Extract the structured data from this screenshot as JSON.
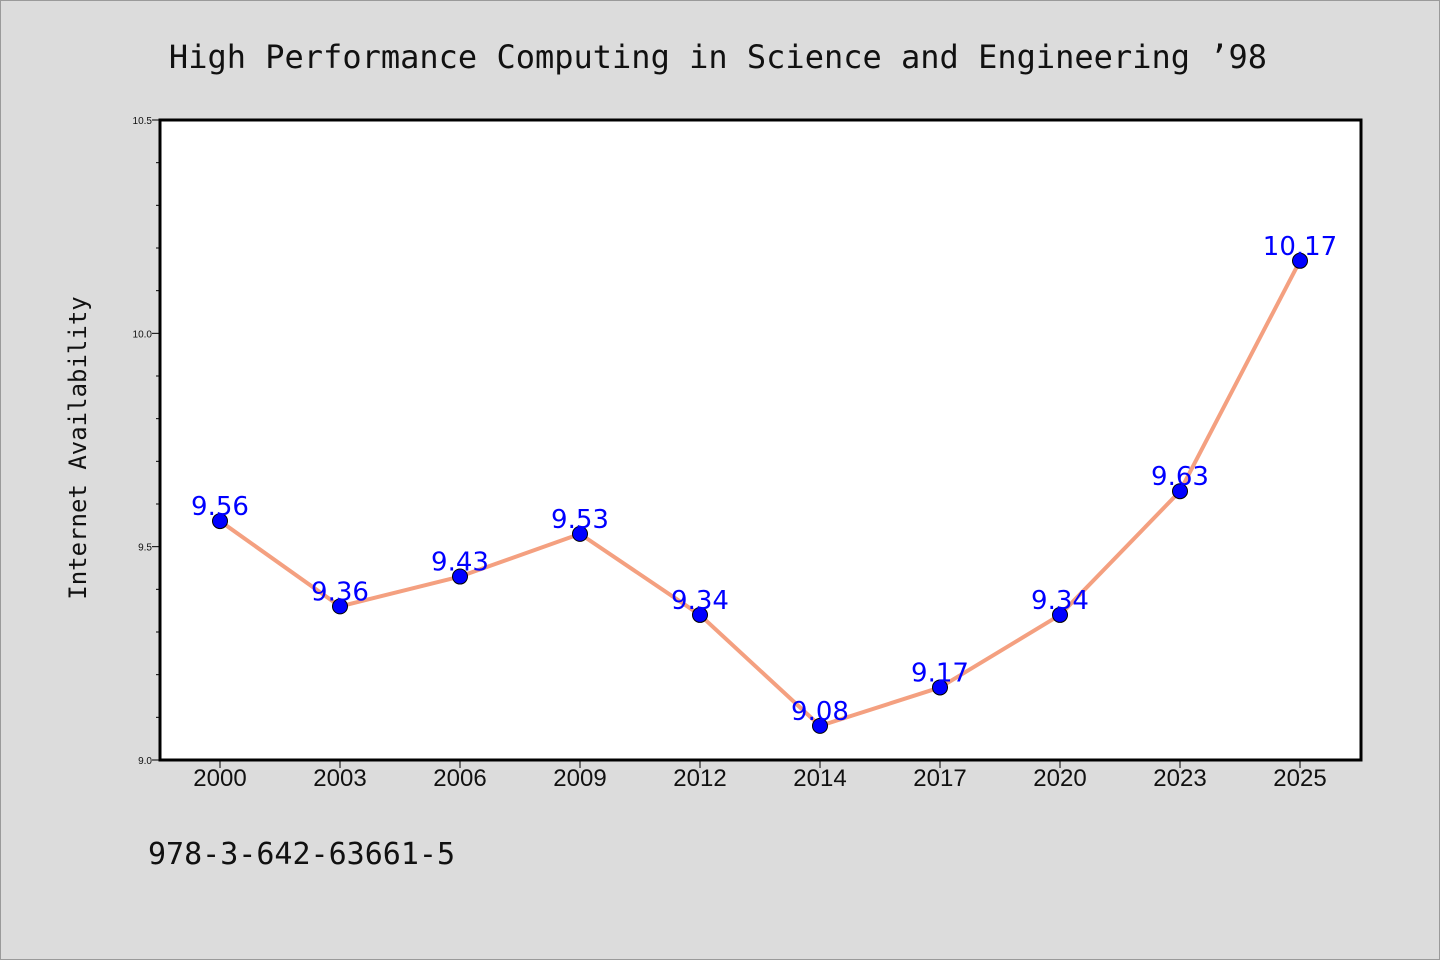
{
  "chart_data": {
    "type": "line",
    "title": "High Performance Computing in Science and Engineering ’98",
    "xlabel": "",
    "ylabel": "Internet Availability",
    "categories": [
      "2000",
      "2003",
      "2006",
      "2009",
      "2012",
      "2014",
      "2017",
      "2020",
      "2023",
      "2025"
    ],
    "series": [
      {
        "values": [
          9.56,
          9.36,
          9.43,
          9.53,
          9.34,
          9.08,
          9.17,
          9.34,
          9.63,
          10.17
        ],
        "data_labels": [
          "9.56",
          "9.36",
          "9.43",
          "9.53",
          "9.34",
          "9.08",
          "9.17",
          "9.34",
          "9.63",
          "10.17"
        ]
      }
    ],
    "ylim": [
      9.0,
      10.5
    ],
    "yticks": [
      9.0,
      9.5,
      10.0,
      10.5
    ],
    "ytick_labels": [
      "9.0",
      "9.5",
      "10.0",
      "10.5"
    ],
    "grid": false,
    "legend": "none",
    "colors": {
      "line": "#f4a080",
      "marker": "#0000ff",
      "data_label": "#0000ff",
      "plot_background": "#ffffff",
      "page_background": "#dcdcdc"
    }
  },
  "footer": {
    "isbn": "978-3-642-63661-5"
  }
}
